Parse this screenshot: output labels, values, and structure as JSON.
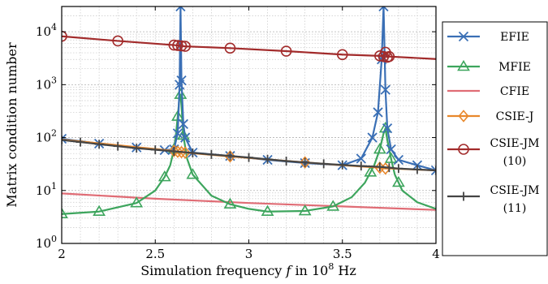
{
  "chart_data": {
    "type": "line",
    "xlabel_prefix": "Simulation frequency",
    "xlabel_var": "f",
    "xlabel_unit_pre": "in 10",
    "xlabel_unit_exp": "8",
    "xlabel_unit_post": "Hz",
    "ylabel": "Matrix condition number",
    "xlim": [
      2,
      4
    ],
    "ylim": [
      1,
      30000
    ],
    "yscale": "log",
    "grid": true,
    "legend_position": "right",
    "x_ticks": [
      {
        "v": 2,
        "label": "2"
      },
      {
        "v": 2.5,
        "label": "2.5"
      },
      {
        "v": 3,
        "label": "3"
      },
      {
        "v": 3.5,
        "label": "3.5"
      },
      {
        "v": 4,
        "label": "4"
      }
    ],
    "y_ticks": [
      {
        "v": 1,
        "base": "10",
        "exp": "0"
      },
      {
        "v": 10,
        "base": "10",
        "exp": "1"
      },
      {
        "v": 100,
        "base": "10",
        "exp": "2"
      },
      {
        "v": 1000,
        "base": "10",
        "exp": "3"
      },
      {
        "v": 10000,
        "base": "10",
        "exp": "4"
      }
    ],
    "series": [
      {
        "name": "CFIE",
        "color": "#e06c75",
        "marker": "none",
        "x": [
          2,
          2.5,
          3,
          3.5,
          4
        ],
        "y": [
          8.8,
          7.0,
          5.8,
          5.0,
          4.3
        ],
        "marker_x": []
      },
      {
        "name": "MFIE",
        "color": "#3da55d",
        "marker": "triangle",
        "x": [
          2,
          2.2,
          2.4,
          2.5,
          2.55,
          2.58,
          2.6,
          2.61,
          2.62,
          2.63,
          2.635,
          2.64,
          2.65,
          2.67,
          2.7,
          2.8,
          2.9,
          3.0,
          3.1,
          3.3,
          3.45,
          3.55,
          3.62,
          3.67,
          3.7,
          3.72,
          3.73,
          3.74,
          3.76,
          3.78,
          3.82,
          3.9,
          4.0
        ],
        "y": [
          3.6,
          4.0,
          5.8,
          10,
          18,
          30,
          60,
          110,
          250,
          600,
          650,
          400,
          110,
          40,
          20,
          8,
          5.5,
          4.5,
          4.0,
          4.1,
          5.0,
          7.5,
          14,
          30,
          60,
          120,
          150,
          90,
          40,
          20,
          10,
          6,
          4.5
        ],
        "marker_x": [
          2,
          2.2,
          2.4,
          2.55,
          2.6,
          2.62,
          2.635,
          2.65,
          2.7,
          2.9,
          3.1,
          3.3,
          3.45,
          3.65,
          3.7,
          3.73,
          3.76,
          3.8
        ]
      },
      {
        "name": "EFIE",
        "color": "#3a6fb5",
        "marker": "x",
        "x": [
          2,
          2.2,
          2.4,
          2.55,
          2.6,
          2.62,
          2.63,
          2.635,
          2.64,
          2.65,
          2.66,
          2.7,
          2.9,
          3.1,
          3.3,
          3.5,
          3.6,
          3.66,
          3.69,
          3.71,
          3.72,
          3.73,
          3.74,
          3.76,
          3.8,
          3.9,
          4.0
        ],
        "y": [
          95,
          77,
          65,
          58,
          60,
          120,
          1000,
          30000,
          1200,
          180,
          100,
          52,
          45,
          38,
          33,
          30,
          40,
          100,
          300,
          3000,
          30000,
          800,
          150,
          60,
          38,
          30,
          24
        ],
        "marker_x": [
          2,
          2.2,
          2.4,
          2.55,
          2.6,
          2.62,
          2.63,
          2.635,
          2.64,
          2.65,
          2.66,
          2.7,
          2.9,
          3.1,
          3.3,
          3.5,
          3.6,
          3.66,
          3.69,
          3.71,
          3.72,
          3.73,
          3.74,
          3.76,
          3.8,
          3.9,
          4.0
        ]
      },
      {
        "name": "CSIE-J",
        "color": "#e8882c",
        "marker": "diamond",
        "x": [
          2,
          2.4,
          2.6,
          2.62,
          2.64,
          2.66,
          2.9,
          3.3,
          3.5,
          3.7,
          3.73,
          3.76,
          4.0
        ],
        "y": [
          92,
          66,
          56,
          54,
          53,
          52,
          44,
          34,
          30,
          27,
          26,
          26,
          24
        ],
        "marker_x": [
          2.6,
          2.62,
          2.64,
          2.66,
          2.9,
          3.3,
          3.7,
          3.73
        ]
      },
      {
        "name": "CSIE-JM\n(10)",
        "color": "#a22b2b",
        "marker": "circle",
        "x": [
          2,
          2.3,
          2.6,
          2.62,
          2.64,
          2.66,
          2.9,
          3.2,
          3.5,
          3.7,
          3.72,
          3.73,
          3.74,
          3.75,
          4.0
        ],
        "y": [
          8200,
          6700,
          5600,
          5500,
          5400,
          5300,
          4900,
          4300,
          3700,
          3500,
          3400,
          4100,
          3300,
          3400,
          3050
        ],
        "marker_x": [
          2,
          2.3,
          2.6,
          2.62,
          2.64,
          2.66,
          2.9,
          3.2,
          3.5,
          3.7,
          3.72,
          3.73,
          3.74,
          3.75
        ]
      },
      {
        "name": "CSIE-JM\n(11)",
        "color": "#444444",
        "marker": "plus",
        "x": [
          2,
          2.2,
          2.4,
          2.6,
          2.8,
          3.0,
          3.2,
          3.4,
          3.6,
          3.7,
          3.75,
          3.8,
          4.0
        ],
        "y": [
          90,
          75,
          63,
          55,
          48,
          42,
          36,
          32,
          29,
          28,
          27,
          26,
          24
        ],
        "marker_x": [
          2,
          2.1,
          2.2,
          2.3,
          2.4,
          2.5,
          2.6,
          2.7,
          2.8,
          2.9,
          3.0,
          3.1,
          3.2,
          3.3,
          3.4,
          3.5,
          3.6,
          3.7,
          3.75,
          3.8,
          3.9,
          4.0
        ]
      }
    ],
    "legend_order": [
      "EFIE",
      "MFIE",
      "CFIE",
      "CSIE-J",
      "CSIE-JM\n(10)",
      "CSIE-JM\n(11)"
    ]
  }
}
